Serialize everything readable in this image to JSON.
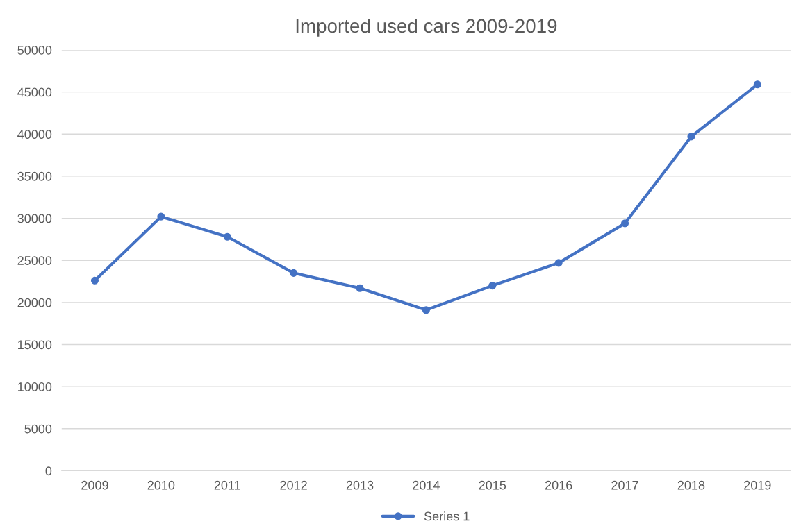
{
  "chart_data": {
    "type": "line",
    "title": "Imported used cars 2009-2019",
    "categories": [
      "2009",
      "2010",
      "2011",
      "2012",
      "2013",
      "2014",
      "2015",
      "2016",
      "2017",
      "2018",
      "2019"
    ],
    "series": [
      {
        "name": "Series 1",
        "color": "#4472c4",
        "values": [
          22600,
          30200,
          27800,
          23500,
          21700,
          19100,
          22000,
          24700,
          29400,
          39700,
          45900
        ]
      }
    ],
    "ylim": [
      0,
      50000
    ],
    "yticks": [
      0,
      5000,
      10000,
      15000,
      20000,
      25000,
      30000,
      35000,
      40000,
      45000,
      50000
    ],
    "grid": "y",
    "legend": "bottom",
    "marker": "circle",
    "line_style": "solid"
  }
}
